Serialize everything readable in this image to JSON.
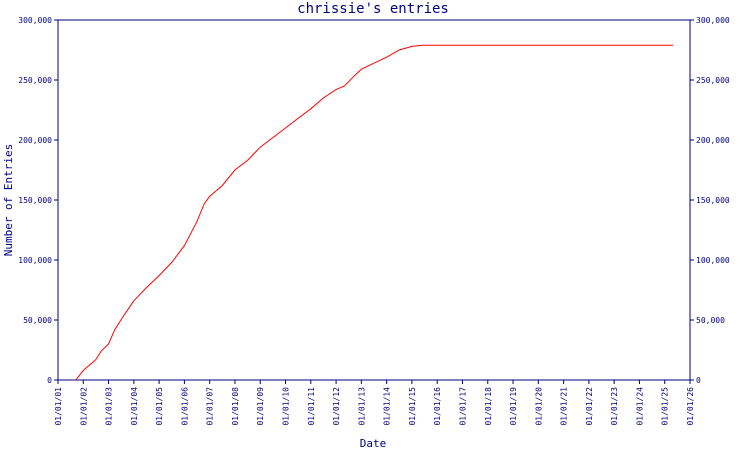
{
  "chart_data": {
    "type": "line",
    "title": "chrissie's entries",
    "xlabel": "Date",
    "ylabel": "Number of Entries",
    "x_tick_labels": [
      "01/01/01",
      "01/01/02",
      "01/01/03",
      "01/01/04",
      "01/01/05",
      "01/01/06",
      "01/01/07",
      "01/01/08",
      "01/01/09",
      "01/01/10",
      "01/01/11",
      "01/01/12",
      "01/01/13",
      "01/01/14",
      "01/01/15",
      "01/01/16",
      "01/01/17",
      "01/01/18",
      "01/01/19",
      "01/01/20",
      "01/01/21",
      "01/01/22",
      "01/01/23",
      "01/01/24",
      "01/01/25",
      "01/01/26"
    ],
    "y_tick_values": [
      0,
      50000,
      100000,
      150000,
      200000,
      250000,
      300000
    ],
    "y_tick_labels": [
      "0",
      "50,000",
      "100,000",
      "150,000",
      "200,000",
      "250,000",
      "300,000"
    ],
    "ylim": [
      0,
      300000
    ],
    "xlim": [
      "2001-01-01",
      "2026-01-01"
    ],
    "grid": false,
    "y_axis_right_duplicate": true,
    "series": [
      {
        "color": "#ff0000",
        "points": [
          [
            "2001-09-15",
            0
          ],
          [
            "2002-01-01",
            8000
          ],
          [
            "2002-07-01",
            17000
          ],
          [
            "2002-09-15",
            24000
          ],
          [
            "2003-01-01",
            30000
          ],
          [
            "2003-04-01",
            42000
          ],
          [
            "2003-08-01",
            53000
          ],
          [
            "2004-01-01",
            66000
          ],
          [
            "2004-07-01",
            77000
          ],
          [
            "2005-01-01",
            87000
          ],
          [
            "2005-07-01",
            98000
          ],
          [
            "2006-01-01",
            112000
          ],
          [
            "2006-07-01",
            132000
          ],
          [
            "2006-10-15",
            147000
          ],
          [
            "2007-01-01",
            153000
          ],
          [
            "2007-07-01",
            162000
          ],
          [
            "2008-01-01",
            175000
          ],
          [
            "2008-07-01",
            183000
          ],
          [
            "2009-01-01",
            194000
          ],
          [
            "2009-07-01",
            202000
          ],
          [
            "2010-01-01",
            210000
          ],
          [
            "2010-07-01",
            218000
          ],
          [
            "2011-01-01",
            226000
          ],
          [
            "2011-07-01",
            235000
          ],
          [
            "2012-01-01",
            242000
          ],
          [
            "2012-05-01",
            245000
          ],
          [
            "2012-10-01",
            254000
          ],
          [
            "2013-01-01",
            259000
          ],
          [
            "2013-07-01",
            264000
          ],
          [
            "2014-01-01",
            269000
          ],
          [
            "2014-07-01",
            275000
          ],
          [
            "2015-01-01",
            278000
          ],
          [
            "2015-06-01",
            279000
          ],
          [
            "2016-01-01",
            279000
          ],
          [
            "2020-01-01",
            279000
          ],
          [
            "2025-05-01",
            279000
          ]
        ]
      }
    ]
  }
}
